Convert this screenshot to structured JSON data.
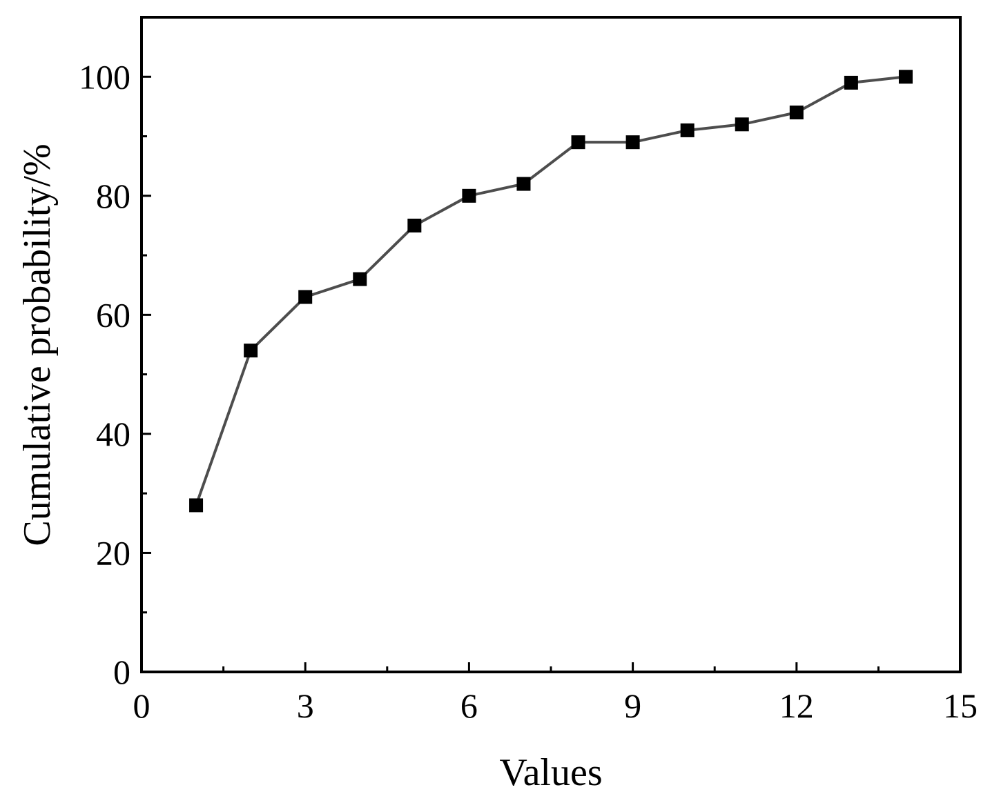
{
  "chart_data": {
    "type": "line",
    "title": "",
    "xlabel": "Values",
    "ylabel": "Cumulative probability/%",
    "xlim": [
      0,
      15
    ],
    "ylim": [
      0,
      110
    ],
    "x_ticks": [
      0,
      3,
      6,
      9,
      12,
      15
    ],
    "y_ticks": [
      0,
      20,
      40,
      60,
      80,
      100
    ],
    "x_tick_labels": [
      "0",
      "3",
      "6",
      "9",
      "12",
      "15"
    ],
    "y_tick_labels": [
      "0",
      "20",
      "40",
      "60",
      "80",
      "100"
    ],
    "grid": false,
    "legend": "none",
    "line_color": "#4d4d4d",
    "marker_color": "#000000",
    "marker": "square",
    "series": [
      {
        "x": [
          1,
          2,
          3,
          4,
          5,
          6,
          7,
          8,
          9,
          10,
          11,
          12,
          13,
          14
        ],
        "values": [
          28,
          54,
          63,
          66,
          75,
          80,
          82,
          89,
          89,
          91,
          92,
          94,
          99,
          100
        ]
      }
    ]
  }
}
